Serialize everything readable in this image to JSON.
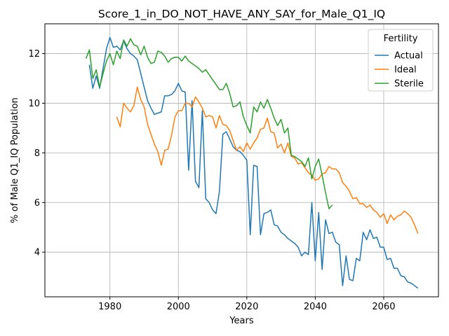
{
  "chart_data": {
    "type": "line",
    "title": "Score_1_in_DO_NOT_HAVE_ANY_SAY_for_Male_Q1_IQ",
    "xlabel": "Years",
    "ylabel": "% of Male Q1_IQ Population",
    "xlim": [
      1961,
      2076
    ],
    "ylim": [
      2.2,
      13.2
    ],
    "xticks": [
      1980,
      2000,
      2020,
      2040,
      2060
    ],
    "yticks": [
      4,
      6,
      8,
      10,
      12
    ],
    "grid": true,
    "legend": {
      "title": "Fertility",
      "placement": "top-right"
    },
    "series": [
      {
        "name": "Actual",
        "color": "#1f77b4",
        "x": [
          1974,
          1975,
          1976,
          1977,
          1978,
          1979,
          1980,
          1981,
          1982,
          1983,
          1984,
          1985,
          1986,
          1987,
          1988,
          1989,
          1990,
          1991,
          1992,
          1993,
          1994,
          1995,
          1996,
          1997,
          1998,
          1999,
          2000,
          2001,
          2002,
          2003,
          2004,
          2005,
          2006,
          2007,
          2008,
          2009,
          2010,
          2011,
          2012,
          2013,
          2014,
          2015,
          2016,
          2017,
          2018,
          2019,
          2020,
          2021,
          2022,
          2023,
          2024,
          2025,
          2026,
          2027,
          2028,
          2029,
          2030,
          2031,
          2032,
          2033,
          2034,
          2035,
          2036,
          2037,
          2038,
          2039,
          2040,
          2041,
          2042,
          2043,
          2044,
          2045,
          2046,
          2047,
          2048,
          2049,
          2050,
          2051,
          2052,
          2053,
          2054,
          2055,
          2056,
          2057,
          2058,
          2059,
          2060,
          2061,
          2062,
          2063,
          2064,
          2065,
          2066,
          2067,
          2068,
          2069,
          2070
        ],
        "values": [
          11.55,
          10.6,
          11.1,
          10.6,
          11.4,
          12.2,
          12.65,
          12.25,
          12.3,
          12.15,
          12.5,
          12.2,
          12.0,
          11.9,
          11.75,
          11.2,
          10.65,
          10.1,
          9.8,
          9.55,
          9.6,
          9.65,
          10.3,
          10.3,
          10.35,
          10.5,
          10.8,
          10.5,
          10.45,
          7.3,
          10.1,
          6.85,
          6.6,
          9.7,
          6.15,
          6.0,
          5.7,
          5.55,
          6.45,
          8.75,
          8.85,
          8.55,
          8.25,
          8.1,
          8.05,
          7.9,
          7.7,
          4.7,
          7.5,
          7.45,
          4.7,
          5.55,
          5.6,
          5.7,
          5.1,
          5.05,
          4.8,
          4.7,
          4.55,
          4.45,
          4.35,
          4.2,
          3.85,
          4.0,
          3.9,
          6.0,
          3.65,
          5.6,
          3.3,
          5.3,
          4.75,
          4.8,
          4.4,
          4.3,
          2.65,
          3.85,
          2.9,
          2.85,
          3.75,
          3.65,
          4.8,
          4.5,
          4.9,
          4.55,
          4.6,
          4.2,
          4.2,
          3.7,
          3.75,
          3.35,
          3.35,
          3.05,
          3.0,
          2.8,
          2.75,
          2.65,
          2.55
        ]
      },
      {
        "name": "Ideal",
        "color": "#ff7f0e",
        "x": [
          1982,
          1983,
          1984,
          1985,
          1986,
          1987,
          1988,
          1989,
          1990,
          1991,
          1992,
          1993,
          1994,
          1995,
          1996,
          1997,
          1998,
          1999,
          2000,
          2001,
          2002,
          2003,
          2004,
          2005,
          2006,
          2007,
          2008,
          2009,
          2010,
          2011,
          2012,
          2013,
          2014,
          2015,
          2016,
          2017,
          2018,
          2019,
          2020,
          2021,
          2022,
          2023,
          2024,
          2025,
          2026,
          2027,
          2028,
          2029,
          2030,
          2031,
          2032,
          2033,
          2034,
          2035,
          2036,
          2037,
          2038,
          2039,
          2040,
          2041,
          2042,
          2043,
          2044,
          2045,
          2046,
          2047,
          2048,
          2049,
          2050,
          2051,
          2052,
          2053,
          2054,
          2055,
          2056,
          2057,
          2058,
          2059,
          2060,
          2061,
          2062,
          2063,
          2064,
          2065,
          2066,
          2067,
          2068,
          2069,
          2070
        ],
        "values": [
          9.45,
          9.05,
          10.0,
          9.8,
          9.65,
          9.9,
          10.65,
          10.15,
          9.85,
          9.15,
          8.75,
          8.35,
          8.05,
          7.5,
          8.1,
          8.15,
          8.7,
          9.45,
          9.7,
          9.7,
          10.0,
          10.0,
          9.85,
          10.25,
          10.05,
          9.8,
          9.45,
          9.5,
          9.45,
          9.0,
          9.5,
          9.15,
          9.1,
          8.9,
          8.5,
          8.1,
          8.25,
          8.05,
          8.4,
          8.15,
          8.4,
          8.6,
          8.95,
          9.0,
          9.4,
          8.85,
          8.8,
          8.2,
          8.35,
          8.0,
          8.4,
          7.85,
          7.8,
          7.55,
          7.6,
          7.4,
          7.2,
          7.1,
          6.9,
          6.95,
          7.15,
          7.2,
          7.45,
          7.35,
          7.35,
          7.2,
          6.8,
          6.65,
          6.45,
          6.15,
          6.2,
          5.95,
          5.95,
          5.8,
          5.9,
          5.7,
          5.6,
          5.4,
          5.55,
          5.15,
          5.5,
          5.3,
          5.45,
          5.5,
          5.65,
          5.55,
          5.4,
          5.1,
          4.75
        ]
      },
      {
        "name": "Sterile",
        "color": "#2ca02c",
        "x": [
          1973,
          1974,
          1975,
          1976,
          1977,
          1978,
          1979,
          1980,
          1981,
          1982,
          1983,
          1984,
          1985,
          1986,
          1987,
          1988,
          1989,
          1990,
          1991,
          1992,
          1993,
          1994,
          1995,
          1996,
          1997,
          1998,
          1999,
          2000,
          2001,
          2002,
          2003,
          2004,
          2005,
          2006,
          2007,
          2008,
          2009,
          2010,
          2011,
          2012,
          2013,
          2014,
          2015,
          2016,
          2017,
          2018,
          2019,
          2020,
          2021,
          2022,
          2023,
          2024,
          2025,
          2026,
          2027,
          2028,
          2029,
          2030,
          2031,
          2032,
          2033,
          2034,
          2035,
          2036,
          2037,
          2038,
          2039,
          2040,
          2041,
          2042,
          2043,
          2044,
          2045
        ],
        "values": [
          11.8,
          12.15,
          11.0,
          11.35,
          10.65,
          11.2,
          11.7,
          12.0,
          11.55,
          12.1,
          11.8,
          12.55,
          12.3,
          12.6,
          12.35,
          12.3,
          11.95,
          12.3,
          11.85,
          11.6,
          11.65,
          12.1,
          12.05,
          11.9,
          11.65,
          11.8,
          11.85,
          11.85,
          11.7,
          11.9,
          11.7,
          11.6,
          11.5,
          11.4,
          11.25,
          11.35,
          11.15,
          10.95,
          10.75,
          10.55,
          10.55,
          10.8,
          10.4,
          9.85,
          9.9,
          10.05,
          9.45,
          9.1,
          8.8,
          9.85,
          9.65,
          10.05,
          9.8,
          10.15,
          9.8,
          9.4,
          9.1,
          9.35,
          8.8,
          9.0,
          7.9,
          7.85,
          7.75,
          7.65,
          7.45,
          7.8,
          6.95,
          7.45,
          7.75,
          7.1,
          6.4,
          5.75,
          5.9
        ]
      }
    ]
  }
}
